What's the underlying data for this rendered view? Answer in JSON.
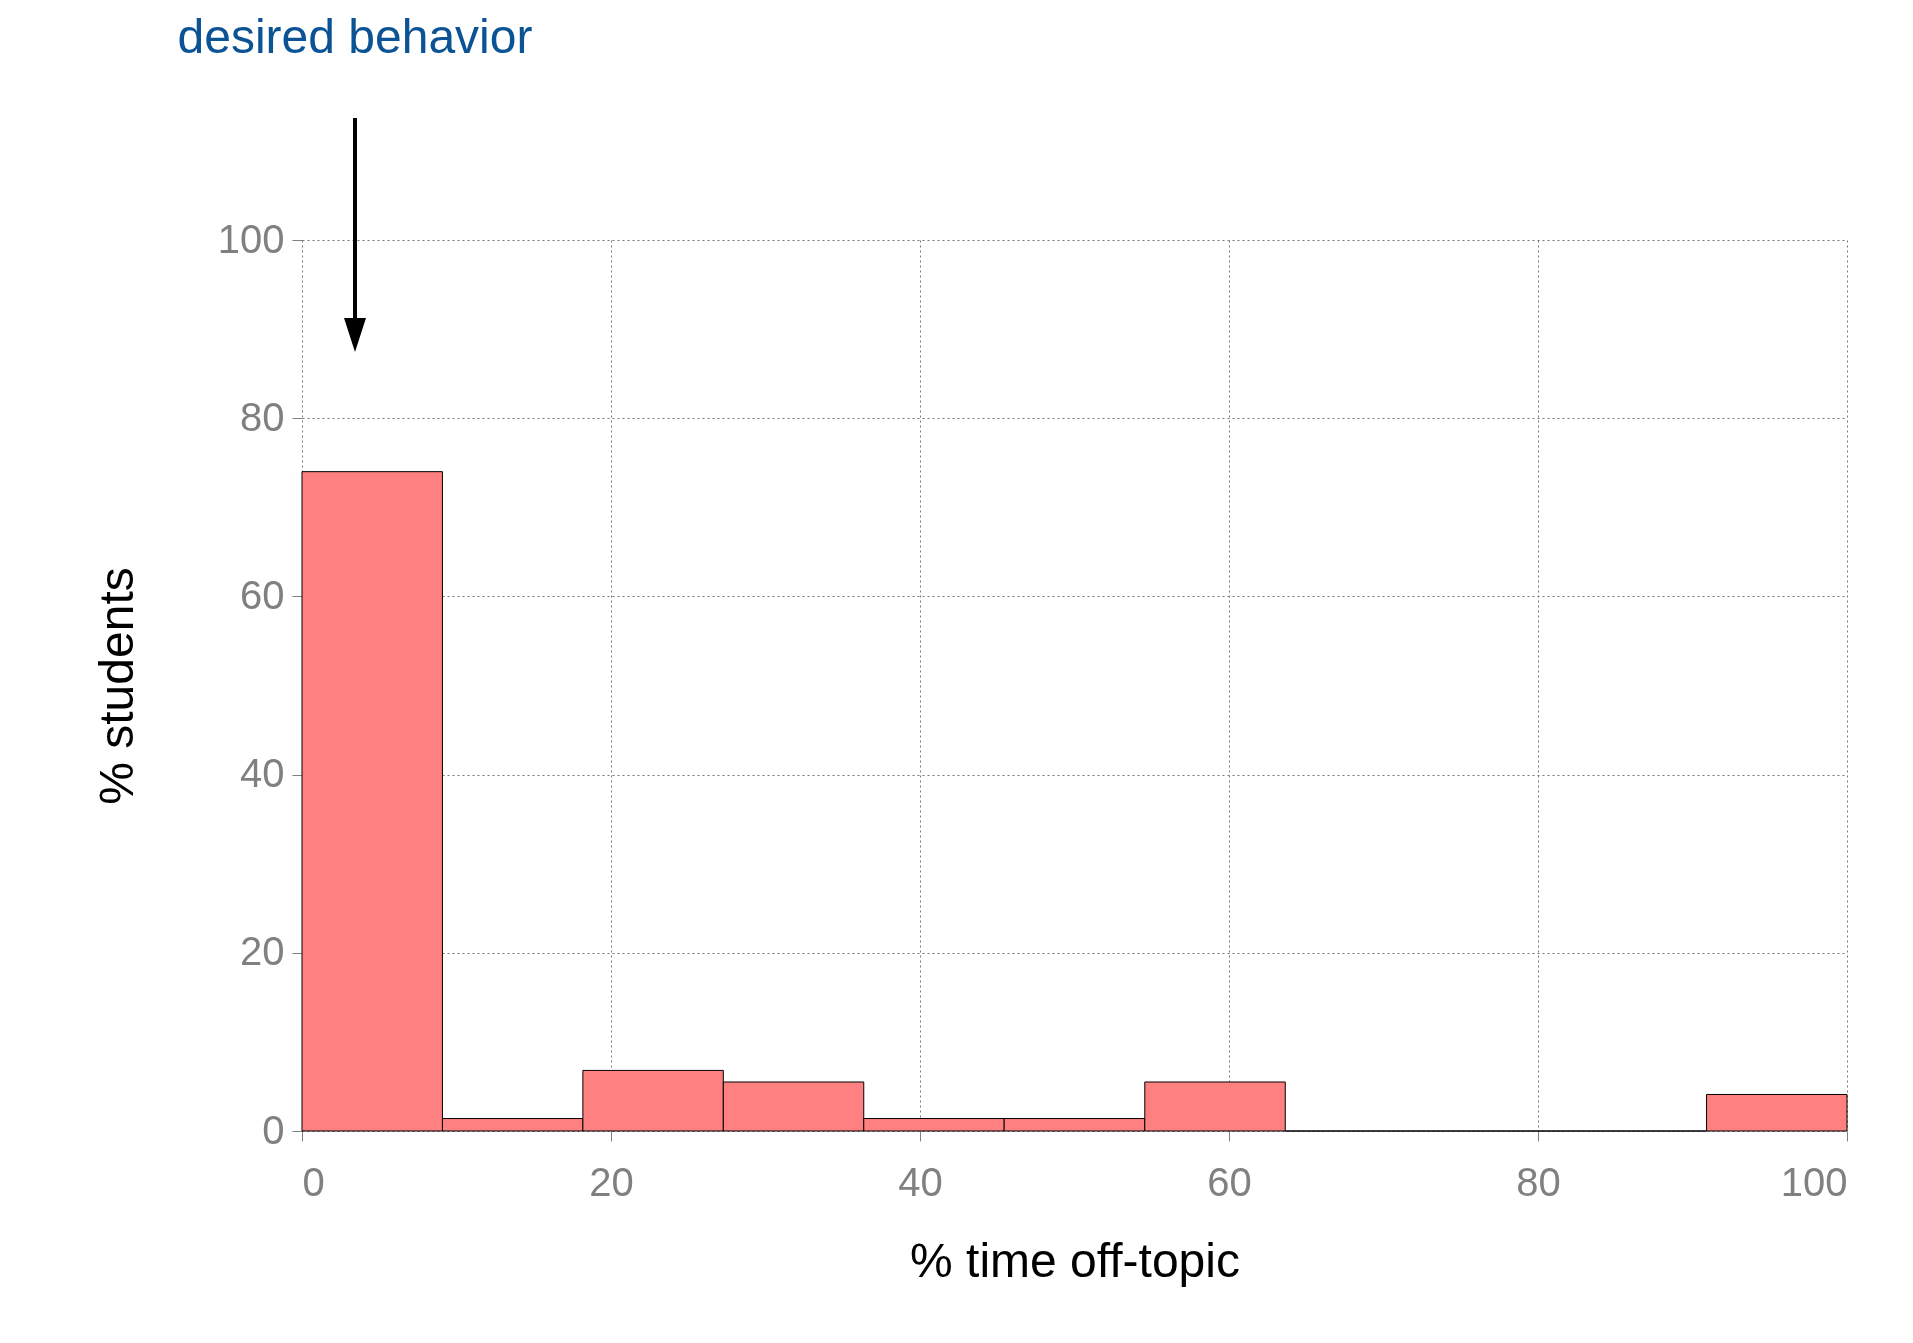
{
  "chart_data": {
    "type": "histogram",
    "xlabel": "% time off-topic",
    "ylabel": "% students",
    "bins": [
      0,
      9.09,
      18.18,
      27.27,
      36.36,
      45.45,
      54.55,
      63.64,
      72.73,
      81.82,
      90.91,
      100
    ],
    "values": [
      74,
      1.4,
      6.8,
      5.5,
      1.4,
      1.4,
      5.5,
      0,
      0,
      0,
      4.1
    ],
    "color": "#ff8080",
    "xlim": [
      0,
      100
    ],
    "xticks": [
      0,
      20,
      40,
      60,
      80,
      100
    ],
    "ylim": [
      0,
      100
    ],
    "yticks": [
      0,
      20,
      40,
      60,
      80,
      100
    ],
    "grid": true,
    "annotations": [
      "desired behavior"
    ]
  }
}
